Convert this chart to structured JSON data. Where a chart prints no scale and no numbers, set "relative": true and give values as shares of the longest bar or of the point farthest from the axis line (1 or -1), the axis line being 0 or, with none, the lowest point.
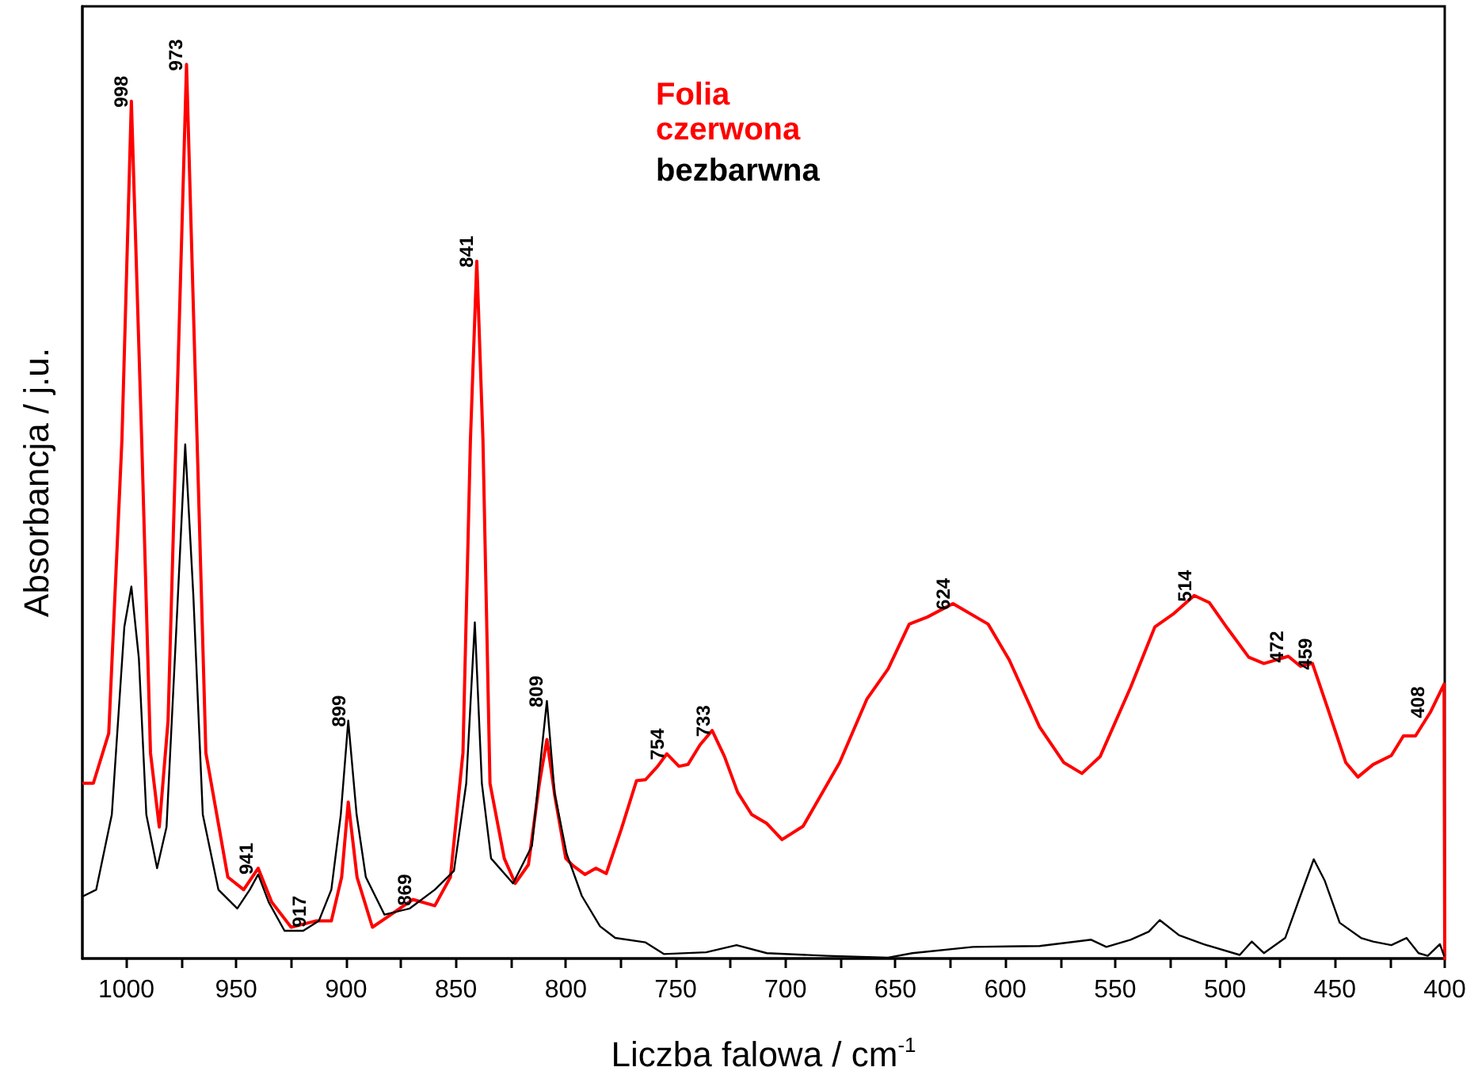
{
  "chart_data": {
    "type": "line",
    "xlabel": "Liczba falowa / cm$^{-1}$",
    "ylabel": "Absorbancja / j.u.",
    "relative": true,
    "xlim": [
      1020,
      400
    ],
    "xticks": [
      1000,
      {
        "value": 975,
        "label": null
      },
      950,
      {
        "value": 925,
        "label": null
      },
      900,
      {
        "value": 875,
        "label": null
      },
      850,
      {
        "value": 825,
        "label": null
      },
      800,
      {
        "value": 775,
        "label": null
      },
      750,
      {
        "value": 725,
        "label": null
      },
      700,
      {
        "value": 675,
        "label": null
      },
      650,
      {
        "value": 625,
        "label": null
      },
      600,
      {
        "value": 575,
        "label": null
      },
      550,
      {
        "value": 525,
        "label": null
      },
      500,
      {
        "value": 475,
        "label": null
      },
      450,
      {
        "value": 425,
        "label": null
      },
      400
    ],
    "grid": false,
    "legend": "top",
    "marker": "none",
    "line_style": "solid",
    "series": [
      {
        "name": "Folia czerwona",
        "color": "#ff0000",
        "x": [
          1019.4,
          1015,
          1008,
          1002,
          997.7,
          993,
          989,
          985,
          981,
          976.6,
          972.6,
          968.6,
          963.8,
          953.8,
          946.6,
          940,
          933.8,
          925,
          913.8,
          906.7,
          902,
          899,
          895,
          888,
          879.6,
          869.6,
          859.6,
          852.5,
          846.8,
          843.4,
          840.5,
          837.7,
          834.5,
          828,
          823,
          817,
          812,
          808.6,
          805,
          800,
          796.8,
          791.3,
          786.3,
          781.6,
          774.7,
          767.8,
          763.7,
          758.2,
          754,
          748.5,
          744.4,
          738.9,
          733.4,
          727.8,
          721.8,
          715.4,
          708.5,
          701.6,
          692,
          675.4,
          663,
          653.3,
          643.7,
          635.4,
          623.8,
          607.8,
          598.2,
          584.4,
          573.3,
          565.1,
          556.8,
          543,
          531.9,
          523.7,
          514,
          507.1,
          498.8,
          489.2,
          482.3,
          471.2,
          465.7,
          460.2,
          453.3,
          445,
          439.5,
          432.6,
          424.3,
          418.8,
          413.3,
          406.4,
          400.3,
          400
        ],
        "values": [
          0.196,
          0.196,
          0.252,
          0.58,
          0.959,
          0.58,
          0.23,
          0.147,
          0.266,
          0.65,
          1.0,
          0.65,
          0.23,
          0.091,
          0.077,
          0.101,
          0.063,
          0.035,
          0.042,
          0.042,
          0.091,
          0.175,
          0.091,
          0.035,
          0.049,
          0.066,
          0.059,
          0.091,
          0.23,
          0.58,
          0.78,
          0.58,
          0.196,
          0.112,
          0.084,
          0.105,
          0.196,
          0.245,
          0.182,
          0.112,
          0.104,
          0.094,
          0.101,
          0.095,
          0.145,
          0.199,
          0.2,
          0.215,
          0.229,
          0.215,
          0.217,
          0.239,
          0.255,
          0.226,
          0.186,
          0.161,
          0.151,
          0.133,
          0.148,
          0.219,
          0.29,
          0.324,
          0.374,
          0.382,
          0.397,
          0.374,
          0.334,
          0.259,
          0.219,
          0.207,
          0.226,
          0.303,
          0.371,
          0.385,
          0.406,
          0.398,
          0.369,
          0.337,
          0.33,
          0.338,
          0.327,
          0.33,
          0.28,
          0.219,
          0.203,
          0.217,
          0.227,
          0.249,
          0.249,
          0.276,
          0.307,
          0
        ]
      },
      {
        "name": "bezbarwna",
        "color": "#000000",
        "x": [
          1019.4,
          1013.7,
          1006.6,
          1000.9,
          997.7,
          994.3,
          990.9,
          986,
          981.7,
          977.2,
          973.2,
          969.5,
          965.2,
          958.1,
          949.5,
          943.8,
          940,
          935.2,
          928,
          919.5,
          912.4,
          906.7,
          902.4,
          899,
          895.2,
          891,
          882.5,
          871,
          859.6,
          850.9,
          845.3,
          841.4,
          838.2,
          834,
          824,
          815.4,
          811.1,
          808.6,
          805.1,
          799.6,
          792.7,
          784.4,
          777.5,
          763.7,
          755.4,
          736.1,
          722.3,
          708.5,
          680.9,
          653.3,
          642.3,
          614.7,
          584.4,
          560.9,
          554,
          543,
          534.7,
          529.7,
          520.9,
          509.8,
          493.3,
          487.8,
          482.3,
          472.6,
          465.7,
          459.6,
          454.6,
          447.8,
          438.1,
          432.6,
          424.3,
          417.4,
          411.9,
          407.7,
          402.2,
          400.3
        ],
        "values": [
          0.07,
          0.077,
          0.161,
          0.371,
          0.416,
          0.336,
          0.161,
          0.101,
          0.147,
          0.371,
          0.575,
          0.406,
          0.161,
          0.077,
          0.056,
          0.077,
          0.094,
          0.063,
          0.031,
          0.031,
          0.042,
          0.077,
          0.161,
          0.266,
          0.161,
          0.091,
          0.049,
          0.056,
          0.077,
          0.098,
          0.196,
          0.376,
          0.196,
          0.112,
          0.084,
          0.126,
          0.23,
          0.288,
          0.185,
          0.117,
          0.07,
          0.036,
          0.023,
          0.018,
          0.005,
          0.007,
          0.015,
          0.006,
          0.003,
          0.001,
          0.006,
          0.013,
          0.014,
          0.021,
          0.013,
          0.021,
          0.03,
          0.043,
          0.026,
          0.016,
          0.004,
          0.019,
          0.006,
          0.023,
          0.07,
          0.111,
          0.087,
          0.04,
          0.023,
          0.019,
          0.015,
          0.023,
          0.006,
          0.003,
          0.016,
          0.003
        ]
      }
    ],
    "annotations": [
      {
        "text": "998",
        "x": 998,
        "y": 0.959
      },
      {
        "text": "973",
        "x": 973,
        "y": 1.0
      },
      {
        "text": "941",
        "x": 941,
        "y": 0.101
      },
      {
        "text": "917",
        "x": 917,
        "y": 0.042
      },
      {
        "text": "899",
        "x": 899,
        "y": 0.266
      },
      {
        "text": "869",
        "x": 869,
        "y": 0.066
      },
      {
        "text": "841",
        "x": 841,
        "y": 0.78
      },
      {
        "text": "809",
        "x": 809,
        "y": 0.288
      },
      {
        "text": "754",
        "x": 754,
        "y": 0.229
      },
      {
        "text": "733",
        "x": 733,
        "y": 0.255
      },
      {
        "text": "624",
        "x": 624,
        "y": 0.397
      },
      {
        "text": "514",
        "x": 514,
        "y": 0.406
      },
      {
        "text": "472",
        "x": 472,
        "y": 0.338
      },
      {
        "text": "459",
        "x": 459,
        "y": 0.33
      },
      {
        "text": "408",
        "x": 408,
        "y": 0.276
      }
    ]
  }
}
